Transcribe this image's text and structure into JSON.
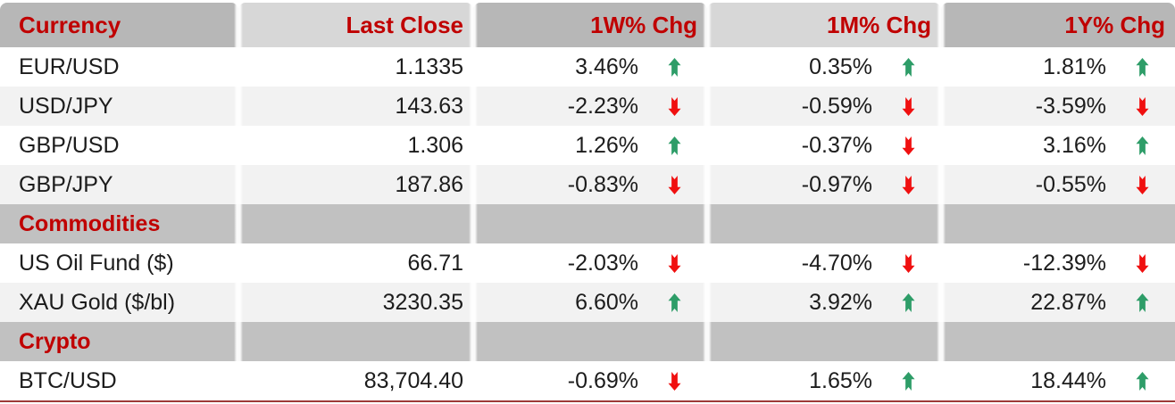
{
  "colors": {
    "accent_red": "#c00000",
    "arrow_up_green": "#2e9d68",
    "arrow_down_red": "#f01010",
    "header_dark_gray": "#b7b7b7",
    "header_light_gray": "#d7d7d7",
    "section_band_gray": "#c1c1c1",
    "stripe_gray": "#f2f2f2",
    "bottom_rule_red": "#9e3a38"
  },
  "table": {
    "columns": [
      {
        "label": "Currency",
        "shade": "dark"
      },
      {
        "label": "Last Close",
        "shade": "light"
      },
      {
        "label": "1W% Chg",
        "shade": "dark"
      },
      {
        "label": "1M% Chg",
        "shade": "light"
      },
      {
        "label": "1Y% Chg",
        "shade": "dark"
      }
    ],
    "rows": [
      {
        "type": "data",
        "name": "EUR/USD",
        "last_close": "1.1335",
        "w1": {
          "value": "3.46%",
          "dir": "up"
        },
        "m1": {
          "value": "0.35%",
          "dir": "up"
        },
        "y1": {
          "value": "1.81%",
          "dir": "up"
        }
      },
      {
        "type": "data",
        "name": "USD/JPY",
        "last_close": "143.63",
        "w1": {
          "value": "-2.23%",
          "dir": "down"
        },
        "m1": {
          "value": "-0.59%",
          "dir": "down"
        },
        "y1": {
          "value": "-3.59%",
          "dir": "down"
        }
      },
      {
        "type": "data",
        "name": "GBP/USD",
        "last_close": "1.306",
        "w1": {
          "value": "1.26%",
          "dir": "up"
        },
        "m1": {
          "value": "-0.37%",
          "dir": "down"
        },
        "y1": {
          "value": "3.16%",
          "dir": "up"
        }
      },
      {
        "type": "data",
        "name": "GBP/JPY",
        "last_close": "187.86",
        "w1": {
          "value": "-0.83%",
          "dir": "down"
        },
        "m1": {
          "value": "-0.97%",
          "dir": "down"
        },
        "y1": {
          "value": "-0.55%",
          "dir": "down"
        }
      },
      {
        "type": "section",
        "name": "Commodities"
      },
      {
        "type": "data",
        "name": "US Oil Fund ($)",
        "last_close": "66.71",
        "w1": {
          "value": "-2.03%",
          "dir": "down"
        },
        "m1": {
          "value": "-4.70%",
          "dir": "down"
        },
        "y1": {
          "value": "-12.39%",
          "dir": "down"
        }
      },
      {
        "type": "data",
        "name": "XAU Gold ($/bl)",
        "last_close": "3230.35",
        "w1": {
          "value": "6.60%",
          "dir": "up"
        },
        "m1": {
          "value": "3.92%",
          "dir": "up"
        },
        "y1": {
          "value": "22.87%",
          "dir": "up"
        }
      },
      {
        "type": "section",
        "name": "Crypto"
      },
      {
        "type": "data",
        "name": "BTC/USD",
        "last_close": "83,704.40",
        "w1": {
          "value": "-0.69%",
          "dir": "down"
        },
        "m1": {
          "value": "1.65%",
          "dir": "up"
        },
        "y1": {
          "value": "18.44%",
          "dir": "up"
        }
      }
    ]
  },
  "chart_data": {
    "type": "table",
    "title": "Market summary: currencies, commodities, crypto",
    "columns": [
      "Currency",
      "Last Close",
      "1W% Chg",
      "1M% Chg",
      "1Y% Chg"
    ],
    "sections": [
      {
        "name": "Currency",
        "rows": [
          {
            "instrument": "EUR/USD",
            "last_close": 1.1335,
            "chg_1w_pct": 3.46,
            "chg_1m_pct": 0.35,
            "chg_1y_pct": 1.81
          },
          {
            "instrument": "USD/JPY",
            "last_close": 143.63,
            "chg_1w_pct": -2.23,
            "chg_1m_pct": -0.59,
            "chg_1y_pct": -3.59
          },
          {
            "instrument": "GBP/USD",
            "last_close": 1.306,
            "chg_1w_pct": 1.26,
            "chg_1m_pct": -0.37,
            "chg_1y_pct": 3.16
          },
          {
            "instrument": "GBP/JPY",
            "last_close": 187.86,
            "chg_1w_pct": -0.83,
            "chg_1m_pct": -0.97,
            "chg_1y_pct": -0.55
          }
        ]
      },
      {
        "name": "Commodities",
        "rows": [
          {
            "instrument": "US Oil Fund ($)",
            "last_close": 66.71,
            "chg_1w_pct": -2.03,
            "chg_1m_pct": -4.7,
            "chg_1y_pct": -12.39
          },
          {
            "instrument": "XAU Gold ($/bl)",
            "last_close": 3230.35,
            "chg_1w_pct": 6.6,
            "chg_1m_pct": 3.92,
            "chg_1y_pct": 22.87
          }
        ]
      },
      {
        "name": "Crypto",
        "rows": [
          {
            "instrument": "BTC/USD",
            "last_close": 83704.4,
            "chg_1w_pct": -0.69,
            "chg_1m_pct": 1.65,
            "chg_1y_pct": 18.44
          }
        ]
      }
    ],
    "notes": "Green notched up-arrow marks positive change, red notched down-arrow marks negative change"
  }
}
